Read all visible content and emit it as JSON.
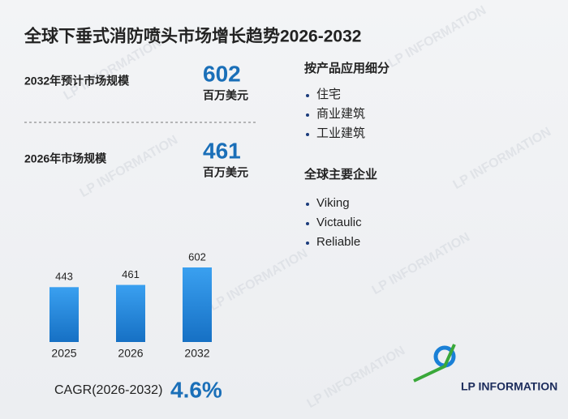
{
  "title": "全球下垂式消防喷头市场增长趋势2026-2032",
  "forecast": {
    "label": "2032年预计市场规模",
    "value": 602,
    "unit": "百万美元"
  },
  "current": {
    "label": "2026年市场规模",
    "value": 461,
    "unit": "百万美元"
  },
  "segments": {
    "title": "按产品应用细分",
    "items": [
      "住宅",
      "商业建筑",
      "工业建筑"
    ]
  },
  "companies": {
    "title": "全球主要企业",
    "items": [
      "Viking",
      "Victaulic",
      "Reliable"
    ]
  },
  "cagr": {
    "label": "CAGR(2026-2032)",
    "value": "4.6%"
  },
  "logo": "LP INFORMATION",
  "watermark": "LP INFORMATION",
  "chart_data": {
    "type": "bar",
    "categories": [
      "2025",
      "2026",
      "2032"
    ],
    "values": [
      443,
      461,
      602
    ],
    "color": "#1a80d6"
  }
}
